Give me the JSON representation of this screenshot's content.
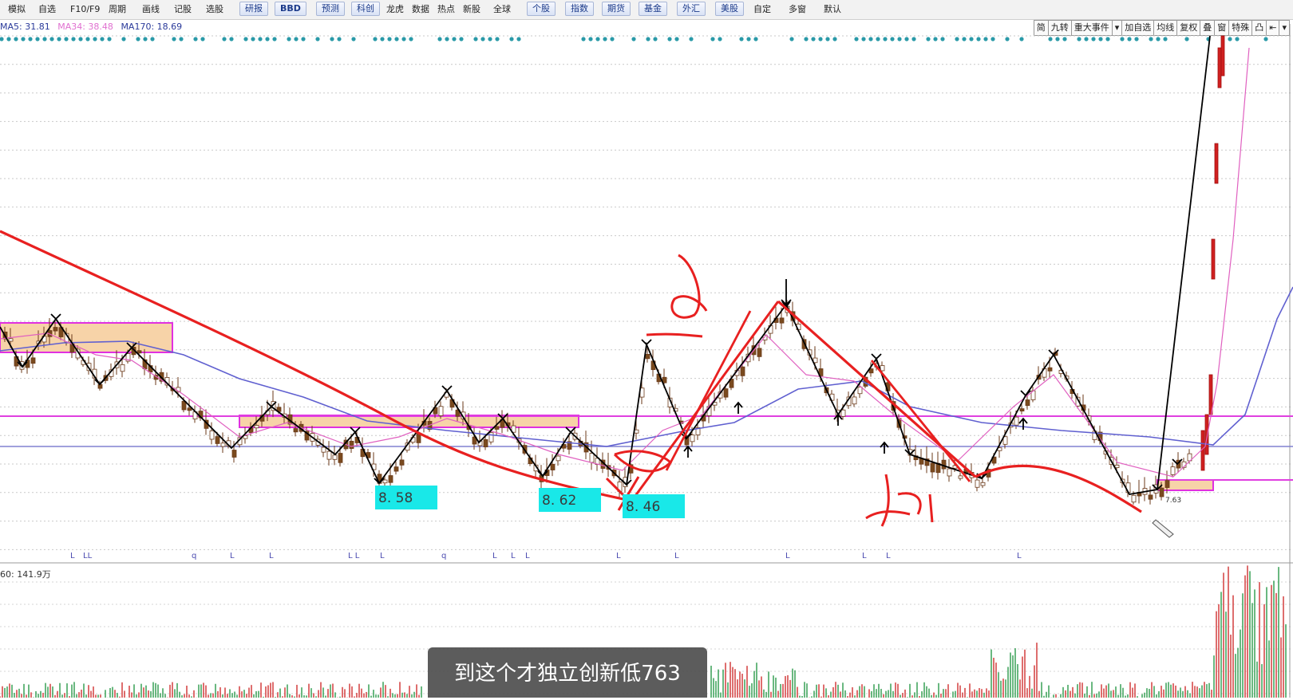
{
  "toolbar": {
    "items": [
      "模拟",
      "自选",
      "F10/F9",
      "周期",
      "画线",
      "记股",
      "选股",
      "研报",
      "BBD",
      "预测",
      "科创",
      "龙虎",
      "数据",
      "热点",
      "新股",
      "全球",
      "个股",
      "指数",
      "期货",
      "基金",
      "外汇",
      "美股",
      "自定",
      "多窗",
      "默认"
    ]
  },
  "ma_legend": {
    "ma5": "MA5: 31.81",
    "ma34": "MA34: 38.48",
    "ma170": "MA170: 18.69"
  },
  "right_toolbar": {
    "items": [
      "简",
      "九转",
      "重大事件",
      "▾",
      "加自选",
      "均线",
      "复权",
      "叠",
      "窗",
      "特殊",
      "凸",
      "⇤",
      "▾"
    ]
  },
  "price_labels": [
    "8. 58",
    "8. 62",
    "8. 46"
  ],
  "low_marker": "7.63",
  "bottom_markers": [
    "L",
    "LL",
    "q",
    "L",
    "L",
    "L L",
    "L",
    "q",
    "L",
    "L",
    "L",
    "L",
    "L",
    "L",
    "L",
    "L",
    "L"
  ],
  "volume_legend": "60: 141.9万",
  "subtitle": "到这个才独立创新低763",
  "colors": {
    "ma_short": "#e060c0",
    "ma_long": "#6060d0",
    "annotation": "#e82020",
    "zigzag": "#000000",
    "zone": "#f7d3a8",
    "zone_border": "#e030e0",
    "price_label_bg": "#19e8e8",
    "dot": "#2a9aa8"
  }
}
